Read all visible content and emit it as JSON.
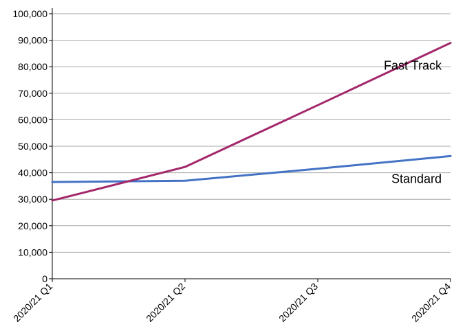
{
  "chart_data": {
    "type": "line",
    "categories": [
      "2020/21 Q1",
      "2020/21 Q2",
      "2020/21 Q3",
      "2020/21 Q4"
    ],
    "series": [
      {
        "name": "Standard",
        "values": [
          36500,
          37000,
          41500,
          46300
        ],
        "color": "#4472c4"
      },
      {
        "name": "Fast Track",
        "values": [
          29500,
          42200,
          65500,
          89000
        ],
        "color": "#a3286b"
      }
    ],
    "ylim": [
      0,
      100000
    ],
    "yticks": [
      0,
      10000,
      20000,
      30000,
      40000,
      50000,
      60000,
      70000,
      80000,
      90000,
      100000
    ],
    "ytick_labels": [
      "0",
      "10,000",
      "20,000",
      "30,000",
      "40,000",
      "50,000",
      "60,000",
      "70,000",
      "80,000",
      "90,000",
      "100,000"
    ],
    "grid": "horizontal",
    "legend": "inline labels near line ends"
  }
}
